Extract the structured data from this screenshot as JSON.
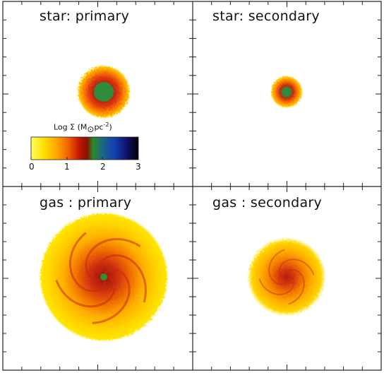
{
  "panels": [
    {
      "id": "star-primary",
      "label": "star: primary"
    },
    {
      "id": "star-secondary",
      "label": "star: secondary"
    },
    {
      "id": "gas-primary",
      "label": "gas : primary"
    },
    {
      "id": "gas-secondary",
      "label": "gas : secondary"
    }
  ],
  "colorbar": {
    "title_prefix": "Log Σ (M",
    "title_sun": "⊙",
    "title_unit": "pc",
    "title_exp": "-2",
    "title_suffix": ")",
    "ticks": [
      "0",
      "1",
      "2",
      "3"
    ],
    "range": [
      0,
      3
    ],
    "colors": [
      "#ffff55",
      "#ffd000",
      "#ff8c00",
      "#e03000",
      "#a01000",
      "#2a8a2a",
      "#1050c0",
      "#101060",
      "#000000"
    ]
  }
}
